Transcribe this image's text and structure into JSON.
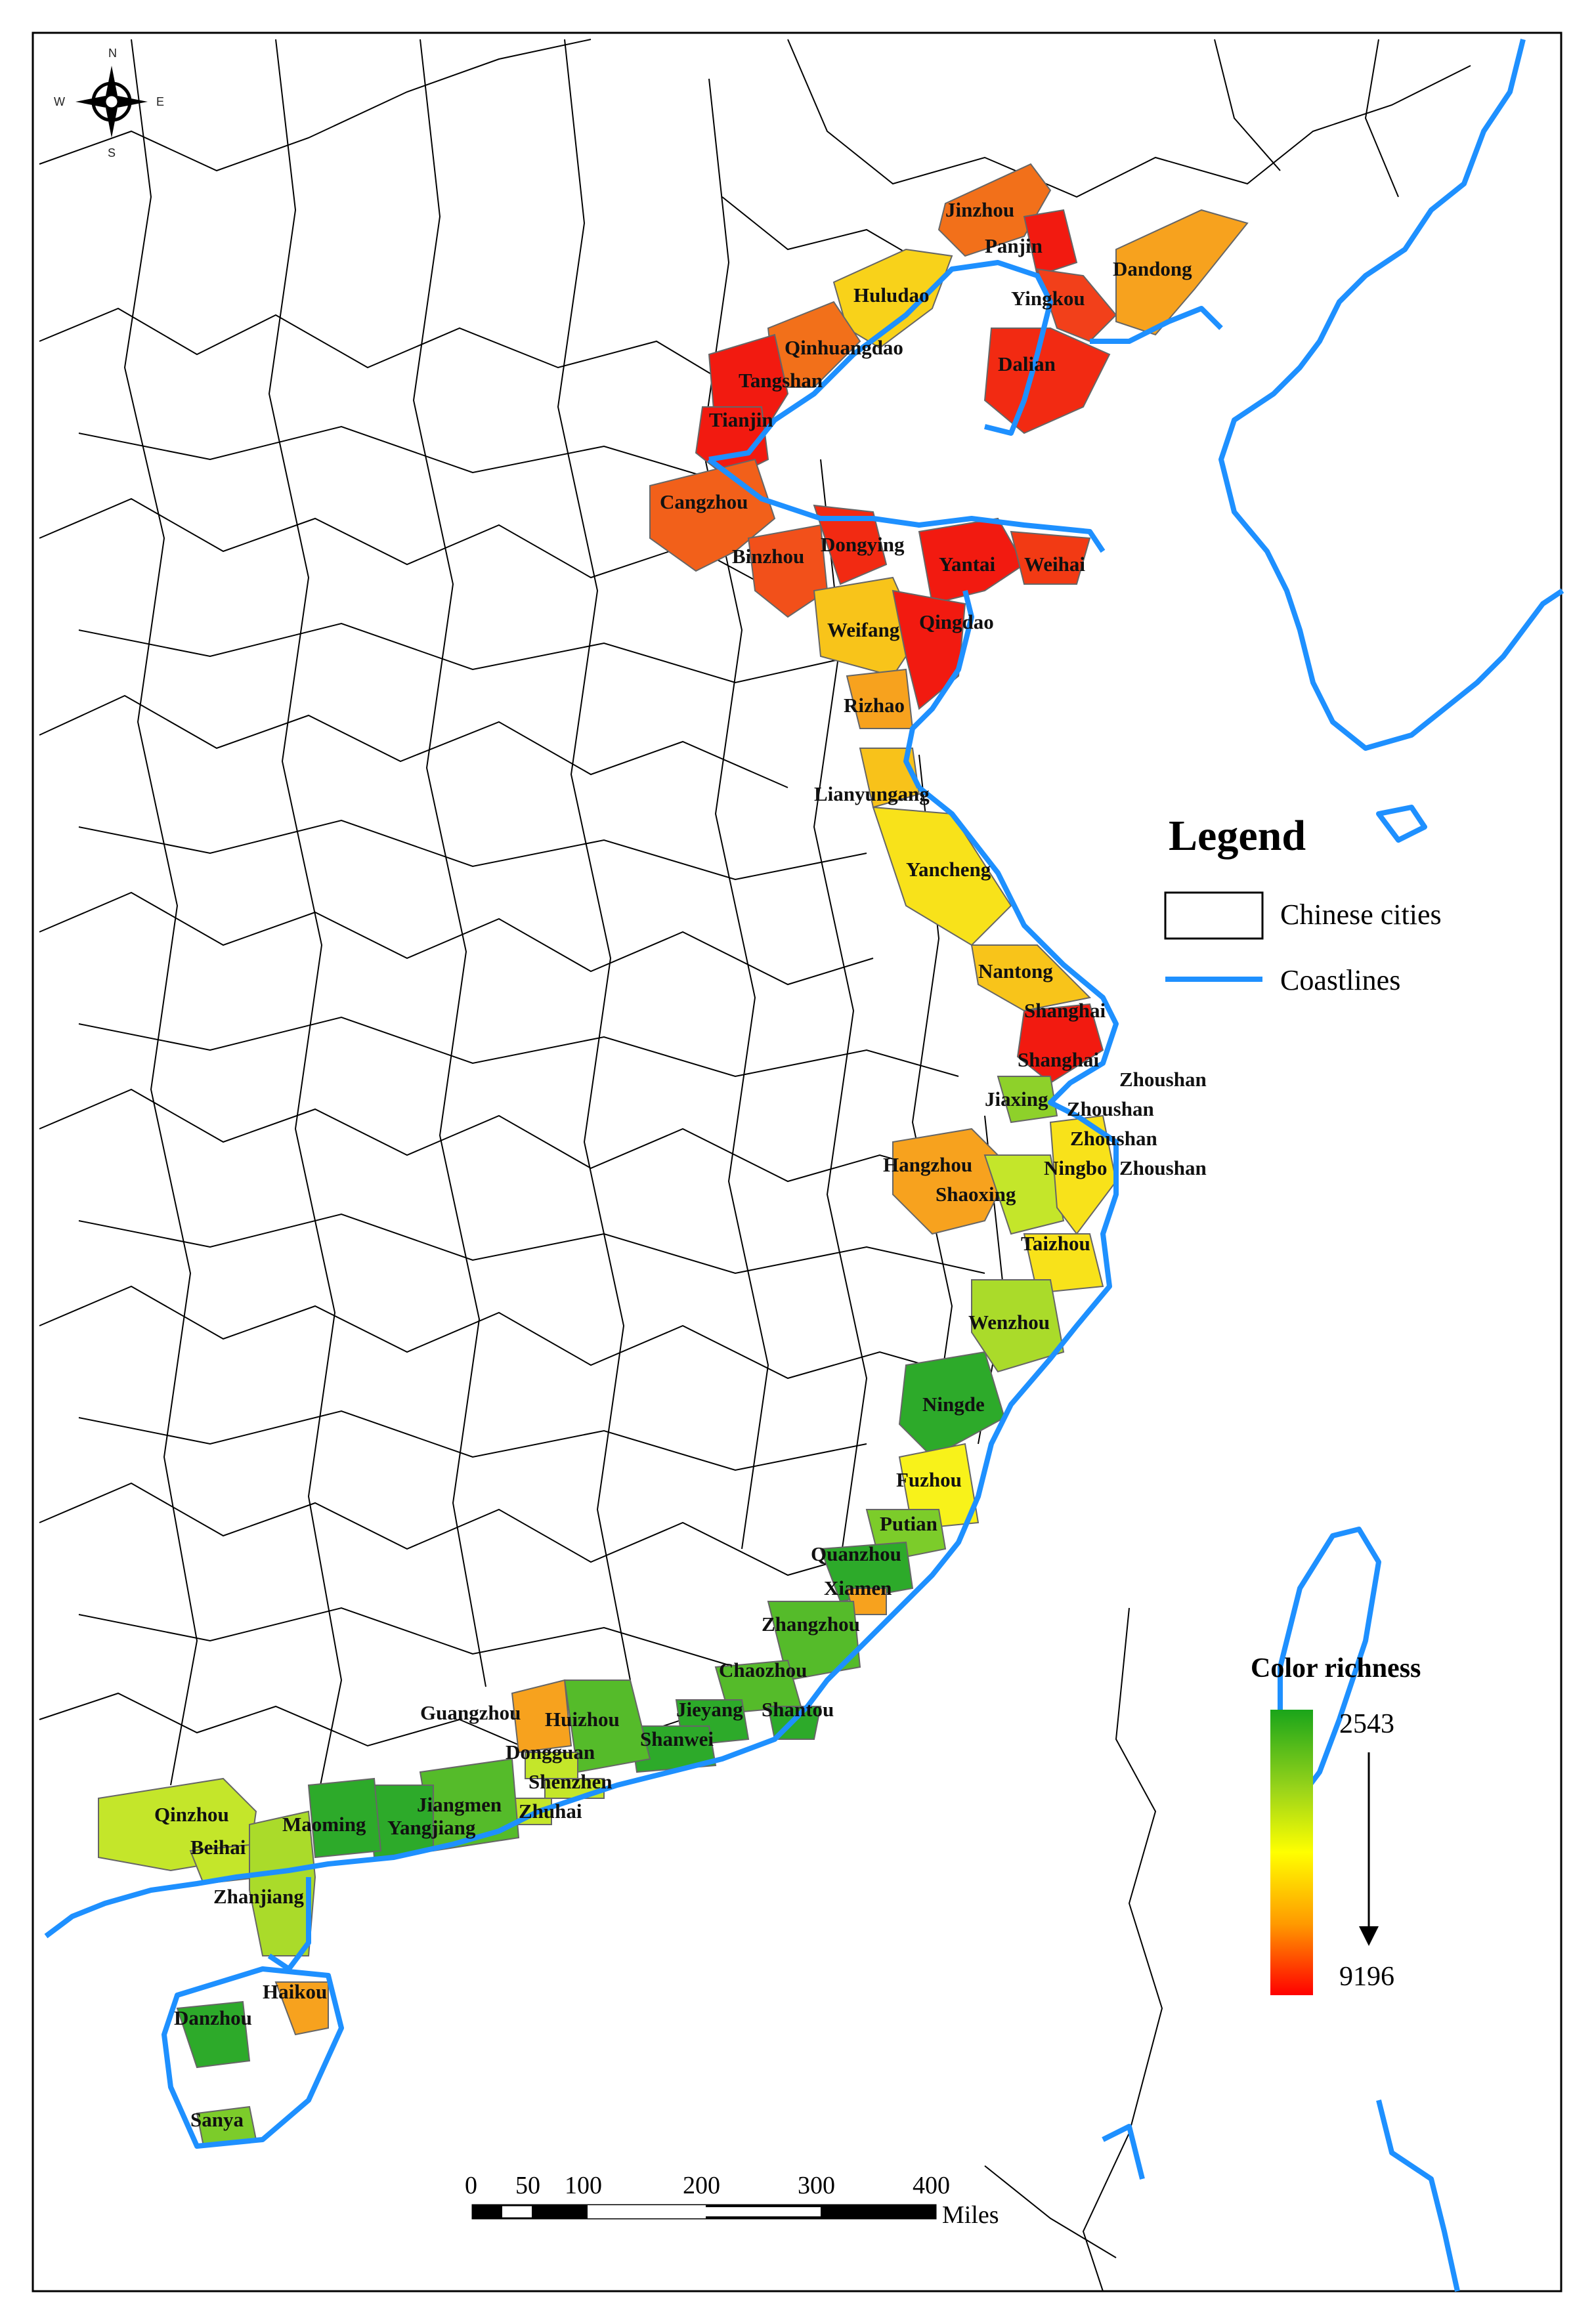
{
  "compass": {
    "n": "N",
    "s": "S",
    "e": "E",
    "w": "W"
  },
  "legend": {
    "title": "Legend",
    "items": [
      {
        "label": "Chinese cities",
        "symbol": "box"
      },
      {
        "label": "Coastlines",
        "symbol": "line",
        "color": "#1e90ff"
      }
    ]
  },
  "color_richness": {
    "title": "Color  richness",
    "min_label": "2543",
    "max_label": "9196",
    "gradient": [
      "#1aa51a",
      "#9ad41a",
      "#ffff00",
      "#ff9a00",
      "#ff0000"
    ]
  },
  "scale_bar": {
    "ticks": [
      "0",
      "50",
      "100",
      "200",
      "300",
      "400"
    ],
    "unit": "Miles"
  },
  "colors": {
    "coastline": "#1e90ff",
    "red": "#f21a10",
    "orange_red": "#f25a1a",
    "orange": "#f7a21e",
    "yellow": "#f8e21a",
    "yellow_green": "#c4e62a",
    "light_green": "#8ed12a",
    "green": "#2daa2a"
  },
  "cities": {
    "jinzhou": "Jinzhou",
    "panjin": "Panjin",
    "dandong": "Dandong",
    "huludao": "Huludao",
    "yingkou": "Yingkou",
    "qinhuangdao": "Qinhuangdao",
    "tangshan": "Tangshan",
    "dalian": "Dalian",
    "tianjin": "Tianjin",
    "cangzhou": "Cangzhou",
    "dongying": "Dongying",
    "binzhou": "Binzhou",
    "yantai": "Yantai",
    "weihai": "Weihai",
    "weifang": "Weifang",
    "qingdao": "Qingdao",
    "rizhao": "Rizhao",
    "lianyungang": "Lianyungang",
    "yancheng": "Yancheng",
    "nantong": "Nantong",
    "shanghai1": "Shanghai",
    "shanghai2": "Shanghai",
    "zhoushan1": "Zhoushan",
    "jiaxing": "Jiaxing",
    "zhoushan2": "Zhoushan",
    "zhoushan3": "Zhoushan",
    "hangzhou": "Hangzhou",
    "ningbo": "Ningbo",
    "zhoushan4": "Zhoushan",
    "shaoxing": "Shaoxing",
    "taizhou": "Taizhou",
    "wenzhou": "Wenzhou",
    "ningde": "Ningde",
    "fuzhou": "Fuzhou",
    "putian": "Putian",
    "quanzhou": "Quanzhou",
    "xiamen": "Xiamen",
    "zhangzhou": "Zhangzhou",
    "chaozhou": "Chaozhou",
    "guangzhou": "Guangzhou",
    "huizhou": "Huizhou",
    "jieyang": "Jieyang",
    "shantou": "Shantou",
    "shanwei": "Shanwei",
    "dongguan": "Dongguan",
    "shenzhen": "Shenzhen",
    "qinzhou": "Qinzhou",
    "jiangmen": "Jiangmen",
    "zhuhai": "Zhuhai",
    "maoming": "Maoming",
    "yangjiang": "Yangjiang",
    "beihai": "Beihai",
    "zhanjiang": "Zhanjiang",
    "haikou": "Haikou",
    "danzhou": "Danzhou",
    "sanya": "Sanya"
  }
}
